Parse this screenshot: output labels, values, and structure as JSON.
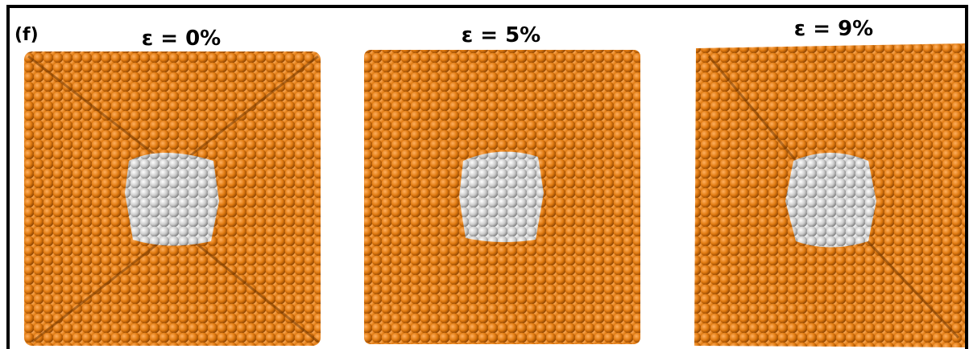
{
  "panel": {
    "label": "(f)",
    "images": [
      {
        "caption": "ε = 0%"
      },
      {
        "caption": "ε = 5%"
      },
      {
        "caption": "ε = 9%"
      }
    ]
  }
}
